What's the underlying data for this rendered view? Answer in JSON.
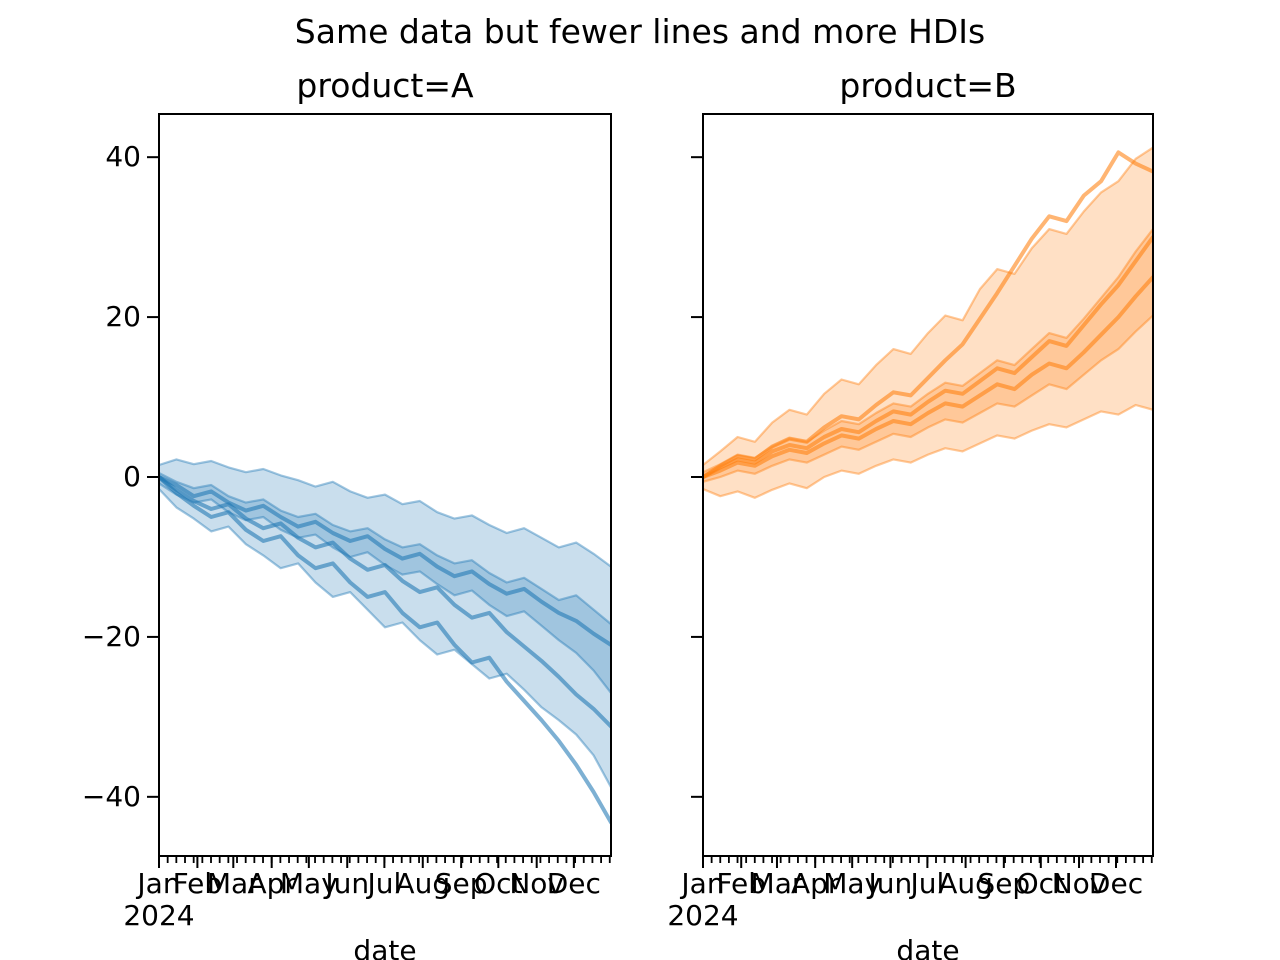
{
  "figure": {
    "suptitle": "Same data but fewer lines and more HDIs"
  },
  "colors": {
    "product_a": "#1f77b4",
    "product_b": "#ff7f0e",
    "axis": "#000000",
    "background": "#ffffff",
    "band_alpha": 0.24,
    "band_edge_alpha": 0.42,
    "line_alpha": 0.58
  },
  "chart_data": [
    {
      "type": "area",
      "title": "product=A",
      "xlabel": "date",
      "ylabel": "",
      "color": "#1f77b4",
      "ylim": [
        -47.4,
        45.4
      ],
      "y_ticks": [
        40,
        20,
        0,
        -20,
        -40
      ],
      "x_axis": {
        "year_label": "2024",
        "month_labels": [
          "Jan",
          "Feb",
          "Mar",
          "Apr",
          "May",
          "Jun",
          "Jul",
          "Aug",
          "Sep",
          "Oct",
          "Nov",
          "Dec"
        ],
        "month_start_days": [
          0,
          31,
          60,
          91,
          121,
          152,
          182,
          213,
          244,
          274,
          305,
          335
        ],
        "xlim_days": [
          0,
          365
        ],
        "minor_tick_every_days": 7
      },
      "x_weeks": [
        0,
        2,
        4,
        6,
        8,
        10,
        12,
        14,
        16,
        18,
        20,
        22,
        24,
        26,
        28,
        30,
        32,
        34,
        36,
        38,
        40,
        42,
        44,
        46,
        48,
        50,
        52
      ],
      "bands": [
        {
          "name": "hdi-outer",
          "high": [
            1.5,
            2.2,
            1.6,
            2.0,
            1.2,
            0.6,
            1.0,
            0.2,
            -0.4,
            -1.2,
            -0.6,
            -1.8,
            -2.6,
            -2.2,
            -3.4,
            -3.0,
            -4.4,
            -5.2,
            -4.8,
            -6.0,
            -7.0,
            -6.4,
            -7.6,
            -8.8,
            -8.2,
            -9.6,
            -11.2
          ],
          "low": [
            -1.5,
            -3.8,
            -5.2,
            -6.8,
            -6.2,
            -8.4,
            -9.8,
            -11.4,
            -10.8,
            -13.2,
            -15.0,
            -14.4,
            -16.6,
            -18.8,
            -18.2,
            -20.4,
            -22.2,
            -21.6,
            -23.4,
            -25.2,
            -24.6,
            -26.6,
            -28.8,
            -30.4,
            -32.2,
            -34.8,
            -38.8
          ]
        },
        {
          "name": "hdi-inner",
          "high": [
            0.5,
            -0.6,
            -1.4,
            -1.0,
            -2.4,
            -3.2,
            -2.8,
            -4.2,
            -5.0,
            -4.6,
            -6.0,
            -6.8,
            -6.4,
            -7.8,
            -8.8,
            -8.4,
            -9.8,
            -10.8,
            -10.4,
            -12.0,
            -13.2,
            -12.6,
            -14.0,
            -15.4,
            -14.8,
            -16.6,
            -18.4
          ],
          "low": [
            -0.8,
            -2.2,
            -3.2,
            -2.8,
            -4.4,
            -5.4,
            -5.0,
            -6.6,
            -7.6,
            -7.2,
            -8.8,
            -10.0,
            -9.4,
            -11.0,
            -12.2,
            -11.8,
            -13.4,
            -14.8,
            -14.2,
            -16.0,
            -17.4,
            -16.8,
            -18.6,
            -20.4,
            -22.0,
            -24.2,
            -27.0
          ]
        }
      ],
      "lines": [
        {
          "name": "sample-1",
          "values": [
            0.0,
            -1.0,
            -2.4,
            -1.8,
            -3.2,
            -4.2,
            -3.6,
            -5.0,
            -6.2,
            -5.6,
            -7.0,
            -8.0,
            -7.4,
            -9.0,
            -10.2,
            -9.6,
            -11.2,
            -12.4,
            -11.8,
            -13.4,
            -14.6,
            -14.0,
            -15.6,
            -17.0,
            -18.0,
            -19.6,
            -21.0
          ]
        },
        {
          "name": "sample-2",
          "values": [
            0.0,
            -1.6,
            -3.0,
            -4.0,
            -3.4,
            -5.2,
            -6.4,
            -5.8,
            -7.6,
            -8.8,
            -8.2,
            -10.2,
            -11.6,
            -11.0,
            -13.0,
            -14.4,
            -13.8,
            -16.0,
            -17.6,
            -17.0,
            -19.4,
            -21.2,
            -23.0,
            -25.0,
            -27.2,
            -29.0,
            -31.2
          ]
        },
        {
          "name": "sample-3",
          "values": [
            0.0,
            -2.0,
            -3.6,
            -5.0,
            -4.4,
            -6.6,
            -8.0,
            -7.4,
            -9.8,
            -11.4,
            -10.8,
            -13.2,
            -15.0,
            -14.4,
            -17.0,
            -18.8,
            -18.2,
            -21.0,
            -23.2,
            -22.6,
            -25.6,
            -28.0,
            -30.4,
            -33.0,
            -36.0,
            -39.4,
            -43.2
          ]
        }
      ]
    },
    {
      "type": "area",
      "title": "product=B",
      "xlabel": "date",
      "ylabel": "",
      "color": "#ff7f0e",
      "ylim": [
        -47.4,
        45.4
      ],
      "y_ticks": [
        40,
        20,
        0,
        -20,
        -40
      ],
      "y_tick_labels_visible": false,
      "x_axis": {
        "year_label": "2024",
        "month_labels": [
          "Jan",
          "Feb",
          "Mar",
          "Apr",
          "May",
          "Jun",
          "Jul",
          "Aug",
          "Sep",
          "Oct",
          "Nov",
          "Dec"
        ],
        "month_start_days": [
          0,
          31,
          60,
          91,
          121,
          152,
          182,
          213,
          244,
          274,
          305,
          335
        ],
        "xlim_days": [
          0,
          365
        ],
        "minor_tick_every_days": 7
      },
      "x_weeks": [
        0,
        2,
        4,
        6,
        8,
        10,
        12,
        14,
        16,
        18,
        20,
        22,
        24,
        26,
        28,
        30,
        32,
        34,
        36,
        38,
        40,
        42,
        44,
        46,
        48,
        50,
        52
      ],
      "bands": [
        {
          "name": "hdi-outer",
          "high": [
            1.5,
            3.2,
            5.0,
            4.4,
            6.8,
            8.4,
            7.8,
            10.4,
            12.2,
            11.6,
            14.0,
            16.0,
            15.4,
            18.0,
            20.2,
            19.6,
            23.5,
            26.0,
            25.4,
            28.6,
            31.0,
            30.4,
            33.2,
            35.6,
            37.0,
            39.8,
            41.2
          ],
          "low": [
            -1.5,
            -2.4,
            -1.8,
            -2.6,
            -1.6,
            -0.8,
            -1.4,
            0.0,
            0.8,
            0.4,
            1.4,
            2.2,
            1.8,
            2.8,
            3.6,
            3.2,
            4.2,
            5.2,
            4.8,
            5.8,
            6.6,
            6.2,
            7.2,
            8.2,
            7.8,
            9.0,
            8.4
          ]
        },
        {
          "name": "hdi-inner",
          "high": [
            0.6,
            1.6,
            2.8,
            2.4,
            3.8,
            4.8,
            4.4,
            5.8,
            7.0,
            6.6,
            8.0,
            9.2,
            8.8,
            10.4,
            11.8,
            11.4,
            13.0,
            14.6,
            14.0,
            16.0,
            18.0,
            17.4,
            19.8,
            22.4,
            25.0,
            28.2,
            31.0
          ],
          "low": [
            -0.6,
            0.0,
            0.8,
            0.4,
            1.4,
            2.2,
            1.8,
            2.8,
            3.8,
            3.4,
            4.4,
            5.4,
            5.0,
            6.2,
            7.2,
            6.8,
            8.0,
            9.2,
            8.8,
            10.2,
            11.6,
            11.0,
            12.8,
            14.6,
            16.0,
            18.2,
            20.2
          ]
        }
      ],
      "lines": [
        {
          "name": "sample-1",
          "values": [
            0.0,
            1.2,
            2.2,
            1.8,
            3.2,
            4.0,
            3.6,
            5.0,
            6.0,
            5.6,
            7.0,
            8.2,
            7.8,
            9.4,
            10.8,
            10.4,
            12.0,
            13.6,
            13.0,
            15.0,
            17.0,
            16.4,
            19.0,
            21.6,
            24.0,
            27.0,
            30.0
          ]
        },
        {
          "name": "sample-2",
          "values": [
            0.0,
            0.8,
            1.8,
            1.4,
            2.6,
            3.4,
            3.0,
            4.2,
            5.2,
            4.8,
            6.0,
            7.0,
            6.6,
            8.0,
            9.2,
            8.8,
            10.2,
            11.6,
            11.0,
            12.8,
            14.2,
            13.6,
            15.6,
            17.8,
            20.0,
            22.6,
            25.0
          ]
        },
        {
          "name": "sample-3",
          "values": [
            0.0,
            1.4,
            2.6,
            2.2,
            3.8,
            4.8,
            4.4,
            6.2,
            7.6,
            7.2,
            9.0,
            10.6,
            10.2,
            12.4,
            14.6,
            16.6,
            19.8,
            23.0,
            26.4,
            29.8,
            32.6,
            32.0,
            35.2,
            37.0,
            40.6,
            39.2,
            38.2
          ]
        }
      ]
    }
  ]
}
